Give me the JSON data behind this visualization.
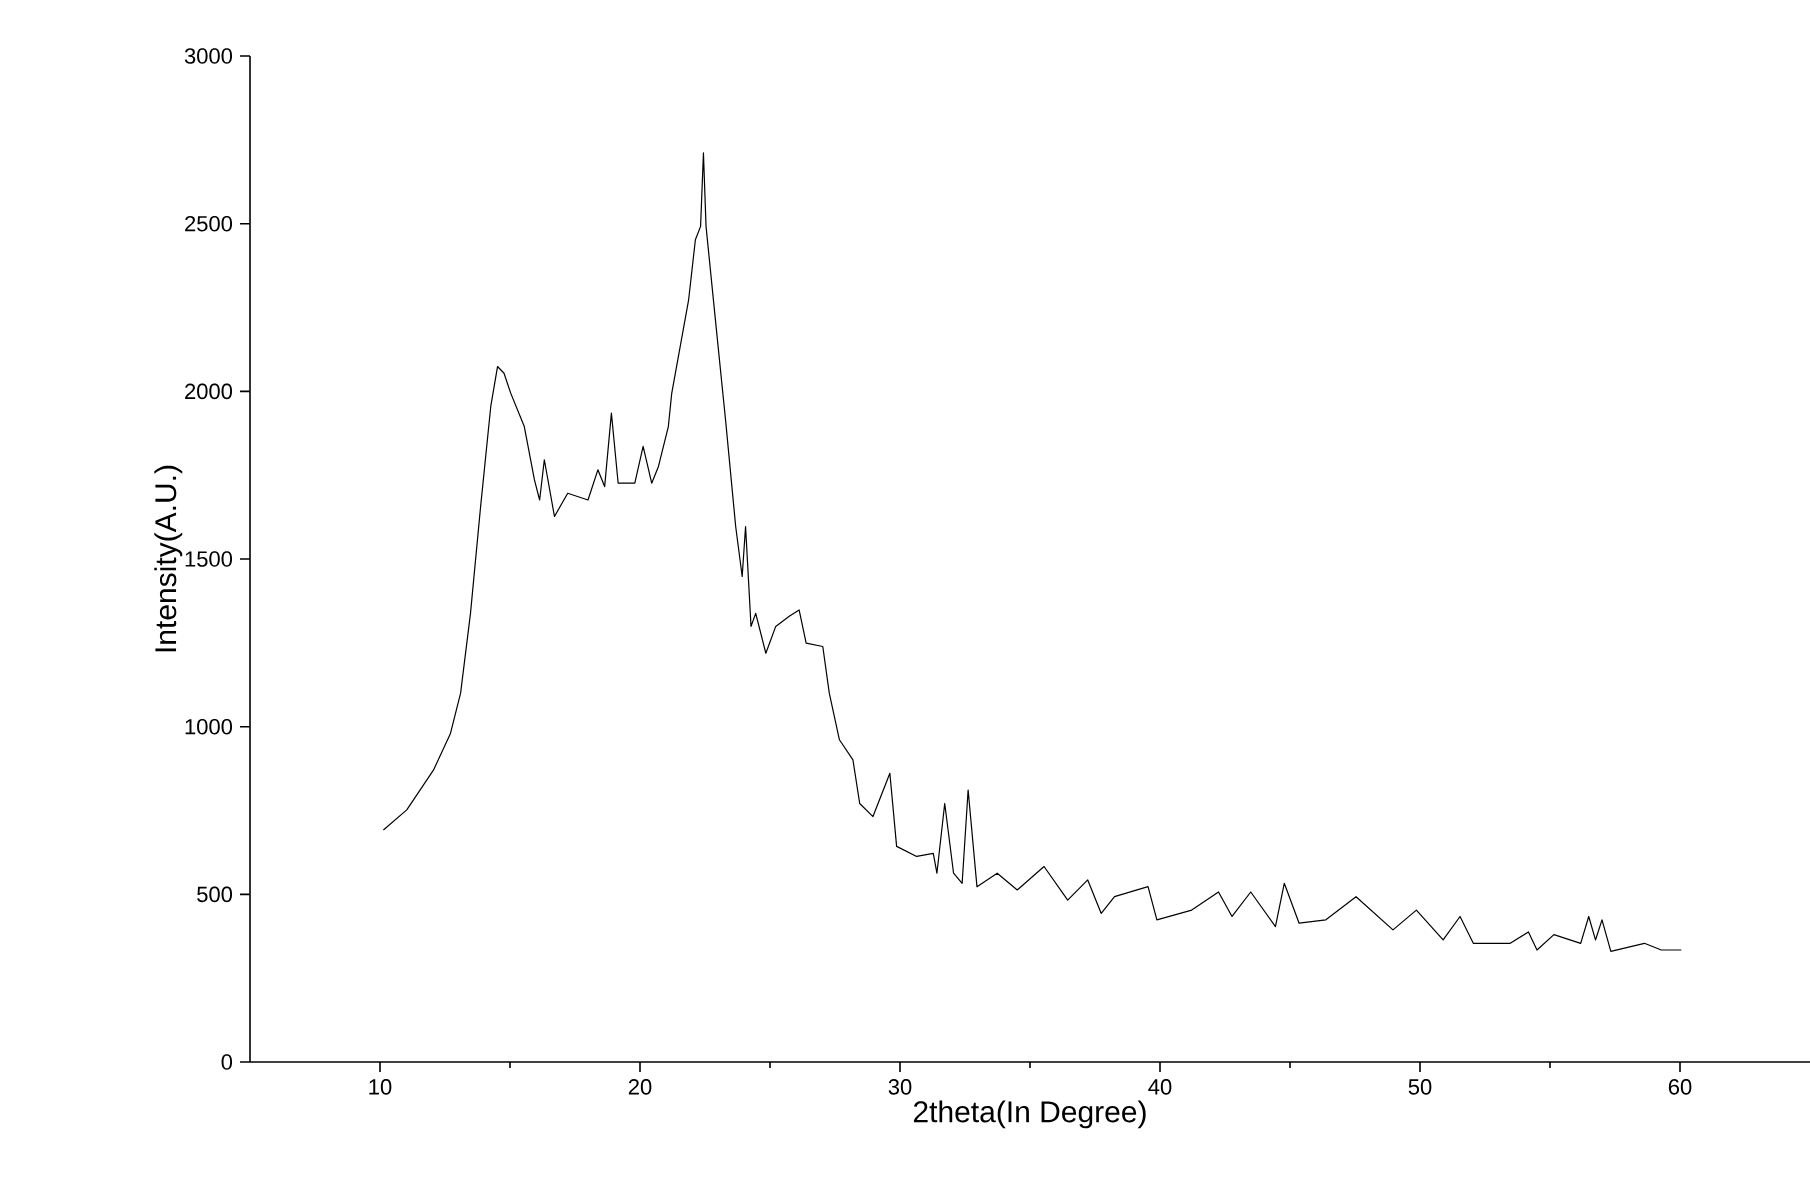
{
  "chart_data": {
    "type": "line",
    "xlabel": "2theta(In Degree)",
    "ylabel": "Intensity(A.U.)",
    "xlim": [
      5,
      65
    ],
    "ylim": [
      0,
      3000
    ],
    "xticks": [
      10,
      20,
      30,
      40,
      50,
      60
    ],
    "yticks": [
      0,
      500,
      1000,
      1500,
      2000,
      2500,
      3000
    ],
    "series": [
      {
        "color": "#000000",
        "x": [
          10.13,
          11.03,
          12.06,
          12.71,
          13.1,
          13.48,
          13.87,
          14.26,
          14.52,
          14.77,
          15.03,
          15.55,
          15.94,
          16.14,
          16.32,
          16.71,
          17.22,
          18.0,
          18.38,
          18.64,
          18.9,
          19.16,
          19.8,
          20.12,
          20.45,
          20.71,
          21.09,
          21.22,
          21.87,
          22.13,
          22.33,
          22.44,
          22.54,
          22.9,
          23.29,
          23.68,
          23.93,
          24.06,
          24.27,
          24.45,
          24.84,
          25.22,
          25.74,
          26.12,
          26.39,
          27.03,
          27.28,
          27.67,
          28.19,
          28.45,
          28.96,
          29.61,
          29.87,
          30.64,
          31.28,
          31.42,
          31.72,
          32.06,
          32.39,
          32.62,
          32.96,
          33.74,
          34.51,
          35.54,
          36.45,
          37.22,
          37.74,
          38.25,
          39.54,
          39.88,
          41.22,
          42.25,
          42.77,
          43.49,
          44.44,
          44.78,
          45.35,
          46.38,
          47.54,
          48.96,
          49.86,
          50.89,
          51.54,
          52.05,
          53.47,
          54.17,
          54.5,
          55.15,
          56.18,
          56.49,
          56.75,
          57.0,
          57.34,
          58.63,
          59.28,
          60.05
        ],
        "values": [
          692,
          752,
          871,
          980,
          1100,
          1338,
          1657,
          1955,
          2074,
          2054,
          1994,
          1895,
          1736,
          1676,
          1796,
          1627,
          1696,
          1676,
          1766,
          1716,
          1935,
          1726,
          1726,
          1836,
          1726,
          1776,
          1895,
          1994,
          2273,
          2452,
          2492,
          2711,
          2492,
          2213,
          1915,
          1597,
          1448,
          1597,
          1299,
          1338,
          1219,
          1299,
          1329,
          1348,
          1249,
          1239,
          1100,
          961,
          901,
          771,
          732,
          861,
          643,
          613,
          622,
          563,
          771,
          563,
          533,
          811,
          523,
          563,
          513,
          583,
          483,
          543,
          443,
          493,
          523,
          424,
          453,
          507,
          434,
          507,
          404,
          533,
          414,
          424,
          493,
          394,
          453,
          364,
          434,
          354,
          354,
          388,
          334,
          380,
          354,
          434,
          364,
          424,
          330,
          354,
          334,
          334
        ]
      }
    ]
  }
}
